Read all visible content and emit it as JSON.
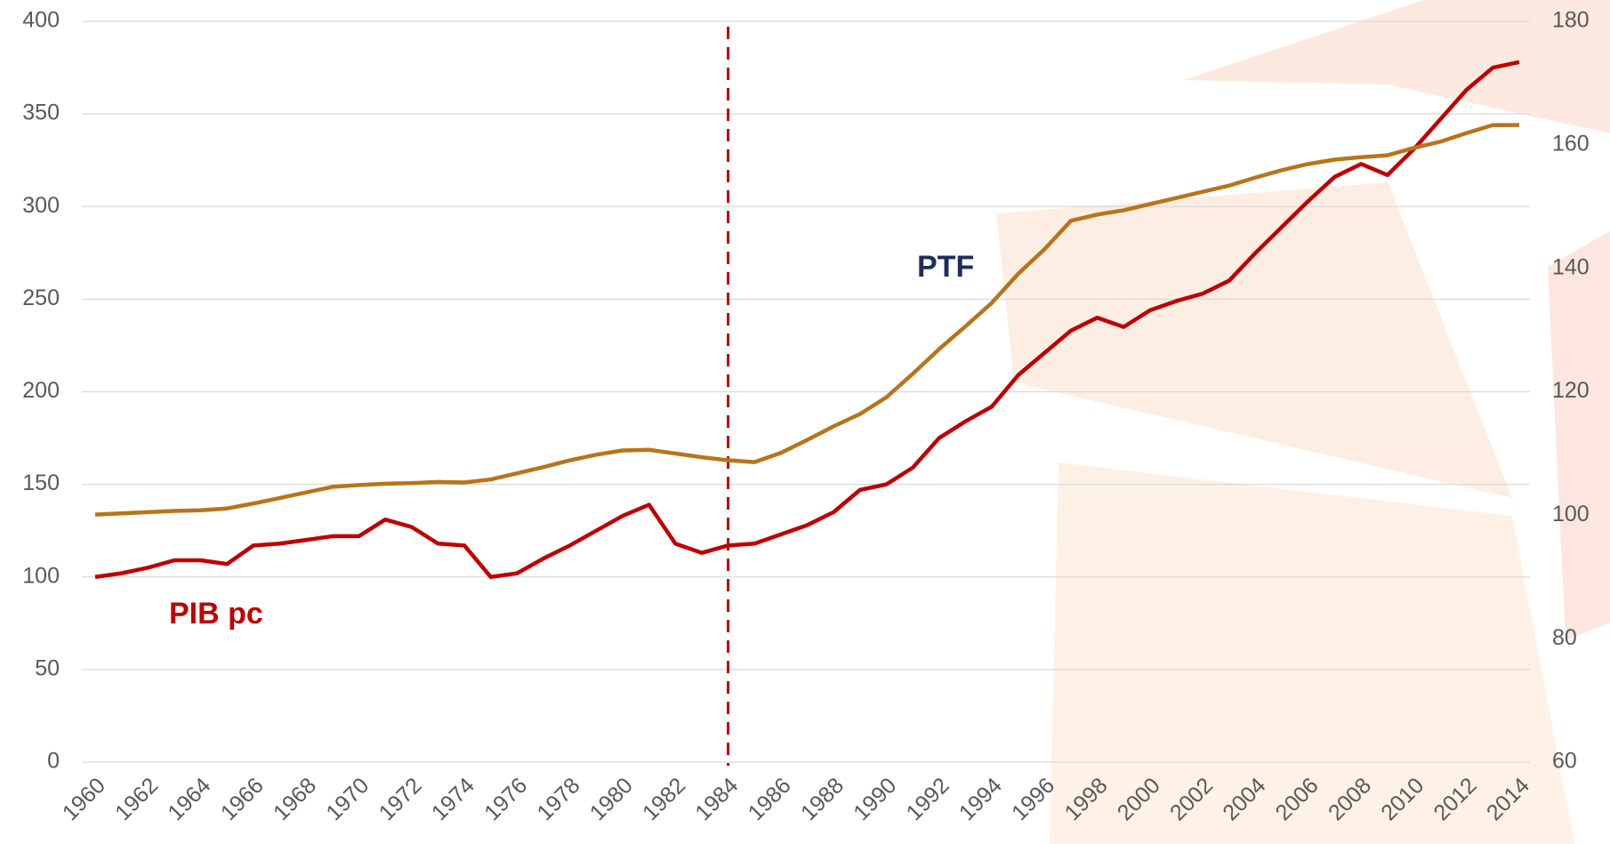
{
  "chart_data": {
    "type": "line",
    "x": [
      1960,
      1961,
      1962,
      1963,
      1964,
      1965,
      1966,
      1967,
      1968,
      1969,
      1970,
      1971,
      1972,
      1973,
      1974,
      1975,
      1976,
      1977,
      1978,
      1979,
      1980,
      1981,
      1982,
      1983,
      1984,
      1985,
      1986,
      1987,
      1988,
      1989,
      1990,
      1991,
      1992,
      1993,
      1994,
      1995,
      1996,
      1997,
      1998,
      1999,
      2000,
      2001,
      2002,
      2003,
      2004,
      2005,
      2006,
      2007,
      2008,
      2009,
      2010,
      2011,
      2012,
      2013,
      2014
    ],
    "series": [
      {
        "name": "PIB pc",
        "color": "#c00000",
        "axis": "y",
        "values": [
          100,
          102,
          105,
          109,
          109,
          107,
          117,
          118,
          120,
          122,
          122,
          131,
          127,
          118,
          117,
          100,
          102,
          110,
          117,
          125,
          133,
          139,
          118,
          113,
          117,
          118,
          123,
          128,
          135,
          147,
          150,
          159,
          175,
          184,
          192,
          209,
          221,
          233,
          240,
          235,
          244,
          249,
          253,
          260,
          275,
          289,
          303,
          316,
          323,
          317,
          331,
          347,
          363,
          375,
          378
        ]
      },
      {
        "name": "PTF",
        "color": "#b8741a",
        "axis": "y2",
        "values": [
          100.1,
          100.3,
          100.5,
          100.7,
          100.8,
          101.1,
          101.9,
          102.8,
          103.7,
          104.6,
          104.9,
          105.1,
          105.2,
          105.4,
          105.3,
          105.8,
          106.8,
          107.8,
          108.9,
          109.8,
          110.5,
          110.6,
          110.0,
          109.4,
          108.9,
          108.6,
          110.1,
          112.2,
          114.4,
          116.4,
          119.1,
          122.9,
          126.9,
          130.6,
          134.4,
          139.1,
          143.1,
          147.7,
          148.7,
          149.4,
          150.4,
          151.4,
          152.4,
          153.4,
          154.7,
          155.9,
          156.9,
          157.6,
          158.0,
          158.3,
          159.5,
          160.5,
          161.9,
          163.2,
          163.2
        ]
      }
    ],
    "xlim": [
      1960,
      2014
    ],
    "xticks": [
      1960,
      1962,
      1964,
      1966,
      1968,
      1970,
      1972,
      1974,
      1976,
      1978,
      1980,
      1982,
      1984,
      1986,
      1988,
      1990,
      1992,
      1994,
      1996,
      1998,
      2000,
      2002,
      2004,
      2006,
      2008,
      2010,
      2012,
      2014
    ],
    "ylim": [
      0,
      400
    ],
    "yticks": [
      0,
      50,
      100,
      150,
      200,
      250,
      300,
      350,
      400
    ],
    "y2lim": [
      60,
      180
    ],
    "y2ticks": [
      60,
      80,
      100,
      120,
      140,
      160,
      180
    ],
    "grid": true,
    "reference_x": 1984,
    "annotations": [
      "PTF",
      "PIB pc"
    ]
  }
}
